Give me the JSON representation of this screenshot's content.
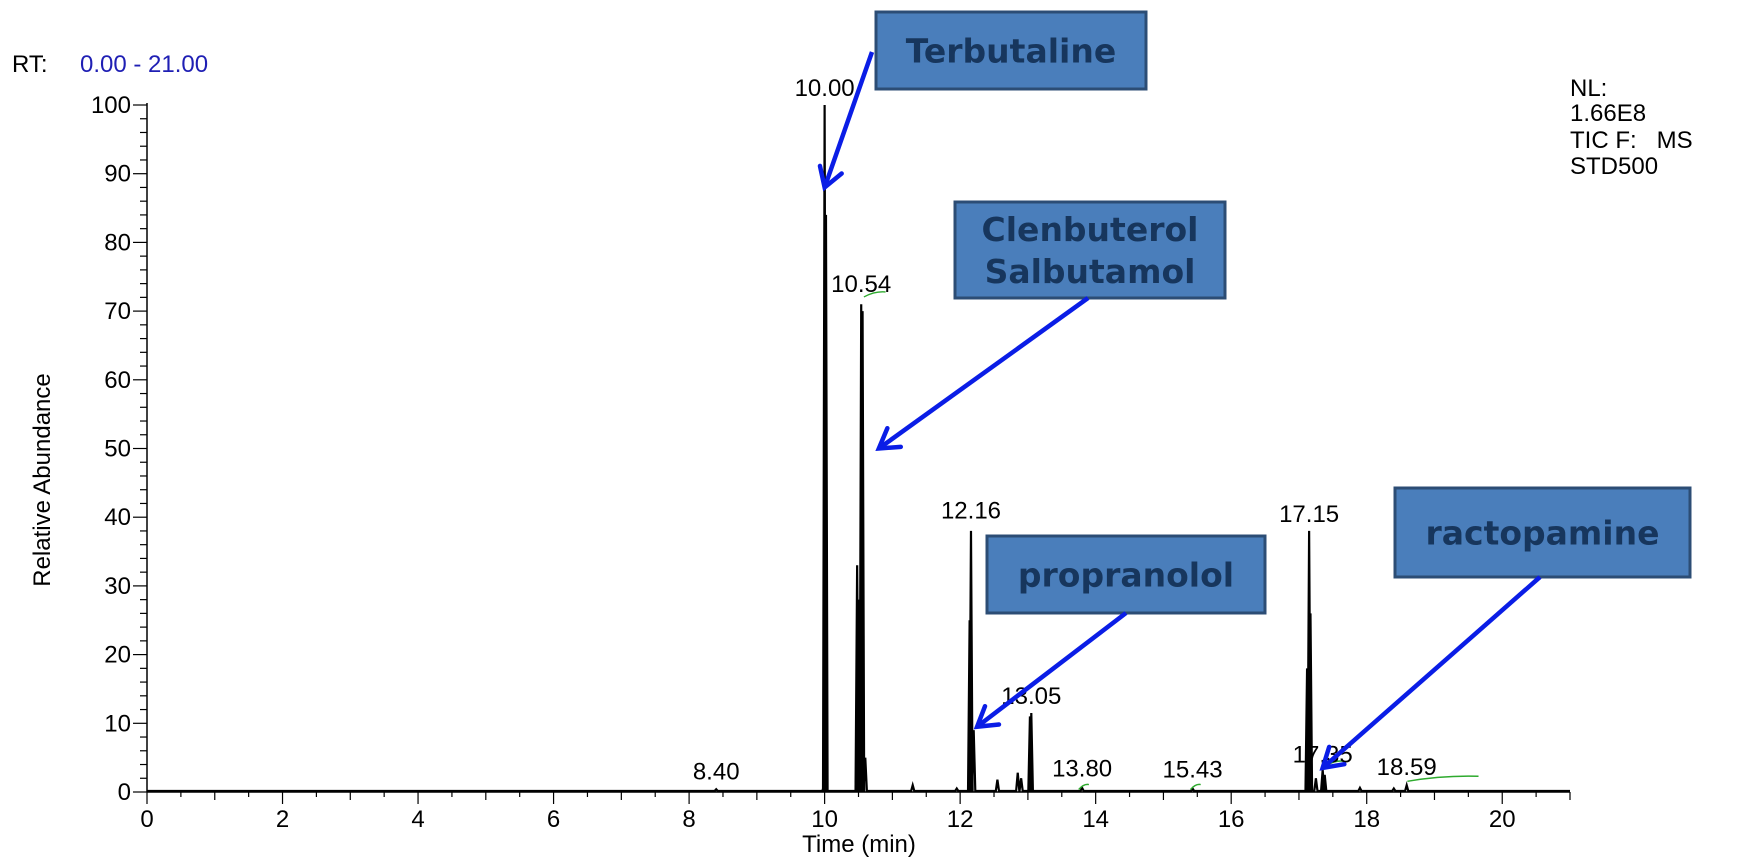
{
  "header": {
    "rt_label": "RT:",
    "rt_range": "0.00 - 21.00",
    "nl_label": "NL:",
    "nl_value": "1.66E8",
    "tic_line": "TIC F:   MS",
    "file_name": "STD500"
  },
  "colors": {
    "trace": "#000000",
    "rt_range_text": "#1f1fb4",
    "box_fill": "#4a7ebb",
    "box_stroke": "#2c4d75",
    "box_text": "#17365d",
    "arrow": "#0a1de6",
    "integration_mark": "#2eaa2e"
  },
  "chart_data": {
    "type": "line",
    "title": "",
    "xlabel": "Time (min)",
    "ylabel": "Relative Abundance",
    "xlim": [
      0,
      21
    ],
    "ylim": [
      0,
      100
    ],
    "x_ticks": [
      0,
      2,
      4,
      6,
      8,
      10,
      12,
      14,
      16,
      18,
      20
    ],
    "y_ticks": [
      0,
      10,
      20,
      30,
      40,
      50,
      60,
      70,
      80,
      90,
      100
    ],
    "grid": false,
    "peaks": [
      {
        "rt": 8.4,
        "height": 0.4,
        "label": "8.40",
        "label_y": 1.5
      },
      {
        "rt": 9.99,
        "height": 1.0,
        "label": "",
        "label_y": 0
      },
      {
        "rt": 10.0,
        "height": 100,
        "label": "10.00",
        "label_y": 101
      },
      {
        "rt": 10.02,
        "height": 84,
        "label": "",
        "label_y": 0
      },
      {
        "rt": 10.48,
        "height": 33,
        "label": "",
        "label_y": 0
      },
      {
        "rt": 10.5,
        "height": 28,
        "label": "",
        "label_y": 0
      },
      {
        "rt": 10.54,
        "height": 71,
        "label": "10.54",
        "label_y": 72.5
      },
      {
        "rt": 10.56,
        "height": 70,
        "label": "",
        "label_y": 0
      },
      {
        "rt": 10.6,
        "height": 5,
        "label": "",
        "label_y": 0
      },
      {
        "rt": 11.3,
        "height": 1.0,
        "label": "",
        "label_y": 0
      },
      {
        "rt": 11.95,
        "height": 0.5,
        "label": "",
        "label_y": 0
      },
      {
        "rt": 12.14,
        "height": 25,
        "label": "",
        "label_y": 0
      },
      {
        "rt": 12.16,
        "height": 38,
        "label": "12.16",
        "label_y": 39.5
      },
      {
        "rt": 12.2,
        "height": 9,
        "label": "",
        "label_y": 0
      },
      {
        "rt": 12.55,
        "height": 1.8,
        "label": "",
        "label_y": 0
      },
      {
        "rt": 12.85,
        "height": 2.8,
        "label": "",
        "label_y": 0
      },
      {
        "rt": 12.9,
        "height": 2.0,
        "label": "",
        "label_y": 0
      },
      {
        "rt": 13.03,
        "height": 11,
        "label": "",
        "label_y": 0
      },
      {
        "rt": 13.05,
        "height": 11.5,
        "label": "13.05",
        "label_y": 12.5
      },
      {
        "rt": 13.8,
        "height": 0.6,
        "label": "13.80",
        "label_y": 2.0
      },
      {
        "rt": 15.43,
        "height": 0.5,
        "label": "15.43",
        "label_y": 1.8
      },
      {
        "rt": 17.12,
        "height": 18,
        "label": "",
        "label_y": 0
      },
      {
        "rt": 17.15,
        "height": 38,
        "label": "17.15",
        "label_y": 39
      },
      {
        "rt": 17.17,
        "height": 26,
        "label": "",
        "label_y": 0
      },
      {
        "rt": 17.25,
        "height": 2,
        "label": "",
        "label_y": 0
      },
      {
        "rt": 17.35,
        "height": 3.2,
        "label": "17.35",
        "label_y": 4.0
      },
      {
        "rt": 17.38,
        "height": 2.5,
        "label": "",
        "label_y": 0
      },
      {
        "rt": 17.9,
        "height": 0.6,
        "label": "",
        "label_y": 0
      },
      {
        "rt": 18.4,
        "height": 0.5,
        "label": "",
        "label_y": 0
      },
      {
        "rt": 18.59,
        "height": 1.0,
        "label": "18.59",
        "label_y": 2.2
      }
    ],
    "integration_marks": [
      {
        "x1": 10.58,
        "x2": 10.9,
        "y": 72.5
      },
      {
        "x1": 13.75,
        "x2": 13.9,
        "y": 0.8
      },
      {
        "x1": 15.4,
        "x2": 15.55,
        "y": 0.8
      },
      {
        "x1": 17.4,
        "x2": 17.65,
        "y": 4.2
      },
      {
        "x1": 18.6,
        "x2": 19.65,
        "y": 2.0
      }
    ],
    "annotations": [
      {
        "text_lines": [
          "Terbutaline"
        ],
        "target_rt": 10.0,
        "target_y": 88
      },
      {
        "text_lines": [
          "Clenbuterol",
          "Salbutamol"
        ],
        "target_rt": 10.8,
        "target_y": 50
      },
      {
        "text_lines": [
          "propranolol"
        ],
        "target_rt": 12.25,
        "target_y": 9.5
      },
      {
        "text_lines": [
          "ractopamine"
        ],
        "target_rt": 17.35,
        "target_y": 3.5
      }
    ]
  }
}
